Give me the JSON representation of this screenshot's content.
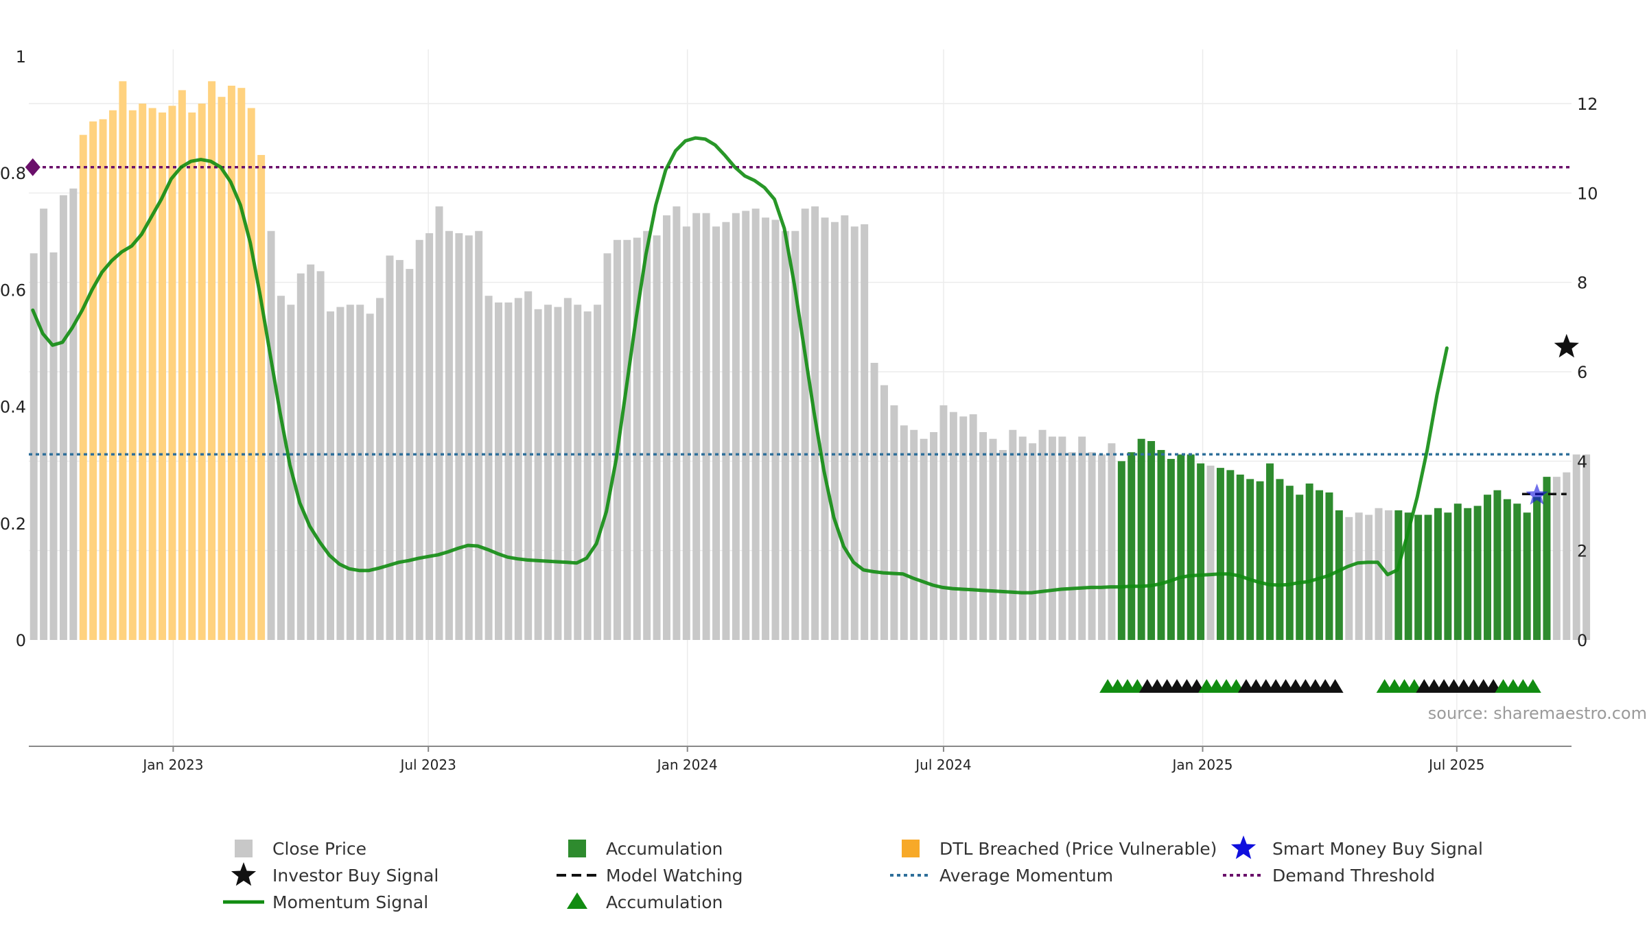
{
  "colors": {
    "close_price": "#c8c8c8",
    "dtl_breached": "#ffd27f",
    "accumulation": "#2e8b2e",
    "momentum": "#118c11",
    "average_momentum": "#2e6f9a",
    "demand_threshold": "#6a0f6a",
    "model_watching": "#111111",
    "investor_star": "#111111",
    "smart_money_star": "#1010dd",
    "accumulation_triangle": "#118c11",
    "watch_triangle": "#111111",
    "grid": "#ececec",
    "axis": "#888888"
  },
  "chart_data": {
    "type": "bar+line",
    "watermark": "source: sharemaestro.com",
    "left_axis": {
      "ticks": [
        0,
        0.2,
        0.4,
        0.6,
        0.8,
        1
      ],
      "tick_labels": [
        "0",
        "0.2",
        "0.4",
        "0.6",
        "0.8",
        "1"
      ],
      "range": [
        0,
        1
      ]
    },
    "right_axis": {
      "ticks": [
        0,
        2,
        4,
        6,
        8,
        10,
        12
      ],
      "tick_labels": [
        "0",
        "2",
        "4",
        "6",
        "8",
        "10",
        "12"
      ],
      "range": [
        0,
        13.1
      ]
    },
    "x_axis": {
      "start_week": 0,
      "end_week": 156,
      "ticks": [
        {
          "label": "Jan 2023",
          "week": 14.6
        },
        {
          "label": "Jul 2023",
          "week": 40.4
        },
        {
          "label": "Jan 2024",
          "week": 66.6
        },
        {
          "label": "Jul 2024",
          "week": 92.5
        },
        {
          "label": "Jan 2025",
          "week": 118.7
        },
        {
          "label": "Jul 2025",
          "week": 144.4
        }
      ]
    },
    "close_price_weekly": [
      8.65,
      9.65,
      8.67,
      9.95,
      10.1,
      11.3,
      11.6,
      11.65,
      11.85,
      12.5,
      11.85,
      12.0,
      11.9,
      11.8,
      11.95,
      12.3,
      11.8,
      12.0,
      12.5,
      12.15,
      12.4,
      12.35,
      11.9,
      10.85,
      9.15,
      7.7,
      7.5,
      8.2,
      8.4,
      8.25,
      7.35,
      7.45,
      7.5,
      7.5,
      7.3,
      7.65,
      8.6,
      8.5,
      8.3,
      8.95,
      9.1,
      9.7,
      9.15,
      9.1,
      9.05,
      9.15,
      7.7,
      7.55,
      7.55,
      7.65,
      7.8,
      7.4,
      7.5,
      7.45,
      7.65,
      7.5,
      7.35,
      7.5,
      8.65,
      8.95,
      8.95,
      9.0,
      9.15,
      9.05,
      9.5,
      9.7,
      9.25,
      9.55,
      9.55,
      9.25,
      9.35,
      9.55,
      9.6,
      9.65,
      9.45,
      9.4,
      9.15,
      9.15,
      9.65,
      9.7,
      9.45,
      9.35,
      9.5,
      9.25,
      9.3,
      6.2,
      5.7,
      5.25,
      4.8,
      4.7,
      4.5,
      4.65,
      5.25,
      5.1,
      5.0,
      5.05,
      4.65,
      4.5,
      4.25,
      4.7,
      4.55,
      4.4,
      4.7,
      4.55,
      4.55,
      4.2,
      4.55,
      4.2,
      4.15,
      4.4,
      4.0,
      4.2,
      4.5,
      4.45,
      4.25,
      4.05,
      4.15,
      4.15,
      3.95,
      3.9,
      3.85,
      3.8,
      3.7,
      3.6,
      3.55,
      3.95,
      3.6,
      3.45,
      3.25,
      3.5,
      3.35,
      3.3,
      2.9,
      2.75,
      2.85,
      2.8,
      2.95,
      2.9,
      2.9,
      2.85,
      2.8,
      2.8,
      2.95,
      2.85,
      3.05,
      2.95,
      3.0,
      3.25,
      3.35,
      3.15,
      3.05,
      2.85,
      3.2,
      3.65,
      3.65,
      3.75,
      4.15,
      4.15
    ],
    "dtl_breached_weeks": [
      [
        5,
        23
      ]
    ],
    "accumulation_weeks": [
      [
        110,
        118
      ],
      [
        120,
        132
      ],
      [
        138,
        149
      ],
      [
        150,
        153
      ]
    ],
    "momentum_weekly": [
      0.565,
      0.525,
      0.505,
      0.51,
      0.535,
      0.565,
      0.6,
      0.63,
      0.65,
      0.665,
      0.675,
      0.695,
      0.725,
      0.755,
      0.79,
      0.81,
      0.82,
      0.823,
      0.82,
      0.81,
      0.785,
      0.745,
      0.68,
      0.59,
      0.49,
      0.39,
      0.3,
      0.235,
      0.195,
      0.168,
      0.145,
      0.13,
      0.122,
      0.119,
      0.119,
      0.123,
      0.128,
      0.133,
      0.136,
      0.14,
      0.143,
      0.146,
      0.151,
      0.157,
      0.162,
      0.161,
      0.155,
      0.148,
      0.142,
      0.139,
      0.137,
      0.136,
      0.135,
      0.134,
      0.133,
      0.132,
      0.14,
      0.165,
      0.22,
      0.31,
      0.43,
      0.55,
      0.66,
      0.745,
      0.805,
      0.838,
      0.855,
      0.86,
      0.858,
      0.848,
      0.83,
      0.81,
      0.795,
      0.787,
      0.775,
      0.755,
      0.705,
      0.61,
      0.5,
      0.39,
      0.29,
      0.21,
      0.16,
      0.133,
      0.12,
      0.117,
      0.115,
      0.114,
      0.113,
      0.106,
      0.1,
      0.094,
      0.09,
      0.088,
      0.087,
      0.086,
      0.085,
      0.084,
      0.083,
      0.082,
      0.081,
      0.081,
      0.083,
      0.085,
      0.087,
      0.088,
      0.089,
      0.09,
      0.09,
      0.091,
      0.091,
      0.092,
      0.092,
      0.093,
      0.096,
      0.101,
      0.107,
      0.11,
      0.111,
      0.112,
      0.113,
      0.113,
      0.11,
      0.104,
      0.099,
      0.095,
      0.094,
      0.095,
      0.098,
      0.1,
      0.105,
      0.11,
      0.118,
      0.126,
      0.132,
      0.133,
      0.133,
      0.112,
      0.12,
      0.18,
      0.245,
      0.325,
      0.42,
      0.5
    ],
    "momentum_start_week": 0.4,
    "average_momentum": 0.318,
    "demand_threshold": 0.81,
    "model_watching": {
      "week_start": 151.0,
      "week_end": 155.5,
      "value": 0.25
    },
    "investor_buy_signal": {
      "week": 155.5,
      "value": 0.502
    },
    "smart_money_buy_signal": {
      "week": 152.5,
      "value": 0.248
    },
    "demand_marker": {
      "week": 0.4,
      "value": 0.81
    },
    "signal_triangles": [
      {
        "week": 109.1,
        "kind": "accumulation"
      },
      {
        "week": 110.1,
        "kind": "accumulation"
      },
      {
        "week": 111.1,
        "kind": "accumulation"
      },
      {
        "week": 112.1,
        "kind": "accumulation"
      },
      {
        "week": 113.1,
        "kind": "watch"
      },
      {
        "week": 114.1,
        "kind": "watch"
      },
      {
        "week": 115.1,
        "kind": "watch"
      },
      {
        "week": 116.1,
        "kind": "watch"
      },
      {
        "week": 117.1,
        "kind": "watch"
      },
      {
        "week": 118.1,
        "kind": "watch"
      },
      {
        "week": 119.1,
        "kind": "accumulation"
      },
      {
        "week": 120.1,
        "kind": "accumulation"
      },
      {
        "week": 121.1,
        "kind": "accumulation"
      },
      {
        "week": 122.1,
        "kind": "accumulation"
      },
      {
        "week": 123.1,
        "kind": "watch"
      },
      {
        "week": 124.1,
        "kind": "watch"
      },
      {
        "week": 125.1,
        "kind": "watch"
      },
      {
        "week": 126.1,
        "kind": "watch"
      },
      {
        "week": 127.1,
        "kind": "watch"
      },
      {
        "week": 128.1,
        "kind": "watch"
      },
      {
        "week": 129.1,
        "kind": "watch"
      },
      {
        "week": 130.1,
        "kind": "watch"
      },
      {
        "week": 131.1,
        "kind": "watch"
      },
      {
        "week": 132.1,
        "kind": "watch"
      },
      {
        "week": 137.1,
        "kind": "accumulation"
      },
      {
        "week": 138.1,
        "kind": "accumulation"
      },
      {
        "week": 139.1,
        "kind": "accumulation"
      },
      {
        "week": 140.1,
        "kind": "accumulation"
      },
      {
        "week": 141.1,
        "kind": "watch"
      },
      {
        "week": 142.1,
        "kind": "watch"
      },
      {
        "week": 143.1,
        "kind": "watch"
      },
      {
        "week": 144.1,
        "kind": "watch"
      },
      {
        "week": 145.1,
        "kind": "watch"
      },
      {
        "week": 146.1,
        "kind": "watch"
      },
      {
        "week": 147.1,
        "kind": "watch"
      },
      {
        "week": 148.1,
        "kind": "watch"
      },
      {
        "week": 149.1,
        "kind": "accumulation"
      },
      {
        "week": 150.1,
        "kind": "accumulation"
      },
      {
        "week": 151.1,
        "kind": "accumulation"
      },
      {
        "week": 152.1,
        "kind": "accumulation"
      }
    ],
    "legend": [
      {
        "label": "Close Price",
        "type": "square-grey"
      },
      {
        "label": "Accumulation",
        "type": "square-green"
      },
      {
        "label": "DTL Breached (Price Vulnerable)",
        "type": "square-orange"
      },
      {
        "label": "Smart Money Buy Signal",
        "type": "star-blue"
      },
      {
        "label": "Investor Buy Signal",
        "type": "star-black"
      },
      {
        "label": "Model Watching",
        "type": "dash-black"
      },
      {
        "label": "Average Momentum",
        "type": "dotted-blue"
      },
      {
        "label": "Demand Threshold",
        "type": "dotted-purple"
      },
      {
        "label": "Momentum Signal",
        "type": "line-green"
      },
      {
        "label": "Accumulation",
        "type": "triangle-green"
      }
    ]
  }
}
